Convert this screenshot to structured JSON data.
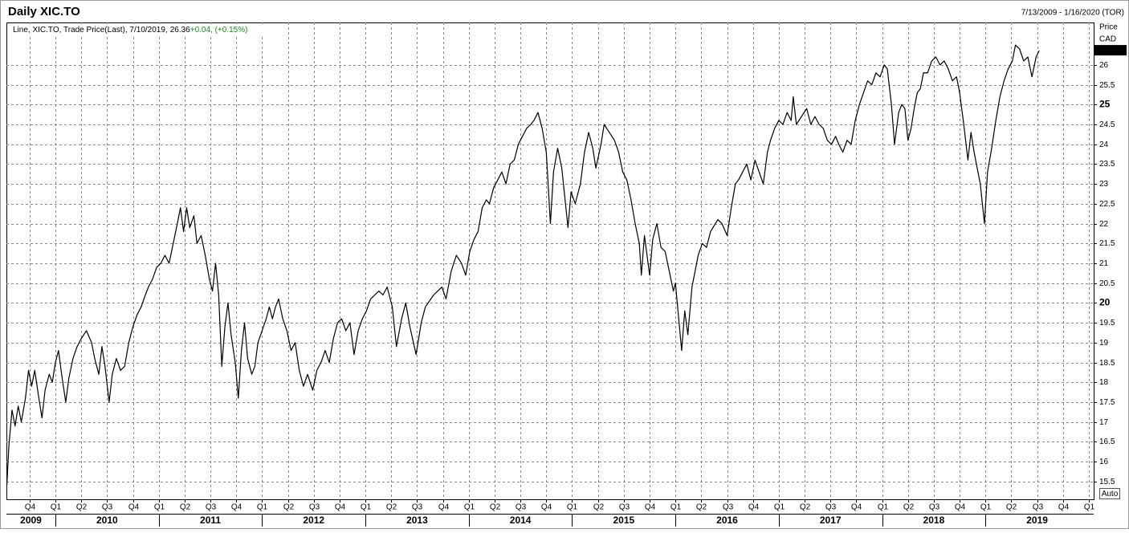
{
  "chart_data": {
    "type": "line",
    "title": "Daily XIC.TO",
    "date_range": "7/13/2009 - 1/16/2020 (TOR)",
    "legend_prefix": "Line, XIC.TO, Trade Price(Last), 7/10/2019,",
    "last_value": 26.36,
    "change": "+0.04, (+0.15%)",
    "y_axis_label": "Price",
    "y_axis_unit": "CAD",
    "auto_button": "Auto",
    "color": "#000000",
    "change_color": "#1a8a1a",
    "grid": true,
    "xlim": [
      2009.526,
      2020.047
    ],
    "ylim": [
      15.05,
      27.07
    ],
    "yticks": [
      15.5,
      16,
      16.5,
      17,
      17.5,
      18,
      18.5,
      19,
      19.5,
      20,
      20.5,
      21,
      21.5,
      22,
      22.5,
      23,
      23.5,
      24,
      24.5,
      25,
      25.5,
      26
    ],
    "xticks": [
      {
        "value": 2009.75,
        "label": "Q4"
      },
      {
        "value": 2010,
        "label": "Q1"
      },
      {
        "value": 2010.25,
        "label": "Q2"
      },
      {
        "value": 2010.5,
        "label": "Q3"
      },
      {
        "value": 2010.75,
        "label": "Q4"
      },
      {
        "value": 2011,
        "label": "Q1"
      },
      {
        "value": 2011.25,
        "label": "Q2"
      },
      {
        "value": 2011.5,
        "label": "Q3"
      },
      {
        "value": 2011.75,
        "label": "Q4"
      },
      {
        "value": 2012,
        "label": "Q1"
      },
      {
        "value": 2012.25,
        "label": "Q2"
      },
      {
        "value": 2012.5,
        "label": "Q3"
      },
      {
        "value": 2012.75,
        "label": "Q4"
      },
      {
        "value": 2013,
        "label": "Q1"
      },
      {
        "value": 2013.25,
        "label": "Q2"
      },
      {
        "value": 2013.5,
        "label": "Q3"
      },
      {
        "value": 2013.75,
        "label": "Q4"
      },
      {
        "value": 2014,
        "label": "Q1"
      },
      {
        "value": 2014.25,
        "label": "Q2"
      },
      {
        "value": 2014.5,
        "label": "Q3"
      },
      {
        "value": 2014.75,
        "label": "Q4"
      },
      {
        "value": 2015,
        "label": "Q1"
      },
      {
        "value": 2015.25,
        "label": "Q2"
      },
      {
        "value": 2015.5,
        "label": "Q3"
      },
      {
        "value": 2015.75,
        "label": "Q4"
      },
      {
        "value": 2016,
        "label": "Q1"
      },
      {
        "value": 2016.25,
        "label": "Q2"
      },
      {
        "value": 2016.5,
        "label": "Q3"
      },
      {
        "value": 2016.75,
        "label": "Q4"
      },
      {
        "value": 2017,
        "label": "Q1"
      },
      {
        "value": 2017.25,
        "label": "Q2"
      },
      {
        "value": 2017.5,
        "label": "Q3"
      },
      {
        "value": 2017.75,
        "label": "Q4"
      },
      {
        "value": 2018,
        "label": "Q1"
      },
      {
        "value": 2018.25,
        "label": "Q2"
      },
      {
        "value": 2018.5,
        "label": "Q3"
      },
      {
        "value": 2018.75,
        "label": "Q4"
      },
      {
        "value": 2019,
        "label": "Q1"
      },
      {
        "value": 2019.25,
        "label": "Q2"
      },
      {
        "value": 2019.5,
        "label": "Q3"
      },
      {
        "value": 2019.75,
        "label": "Q4"
      },
      {
        "value": 2020,
        "label": "Q1"
      }
    ],
    "years": [
      2009,
      2010,
      2011,
      2012,
      2013,
      2014,
      2015,
      2016,
      2017,
      2018,
      2019
    ],
    "x": [
      2009.53,
      2009.55,
      2009.58,
      2009.61,
      2009.64,
      2009.67,
      2009.71,
      2009.74,
      2009.77,
      2009.8,
      2009.84,
      2009.87,
      2009.9,
      2009.94,
      2009.97,
      2010.0,
      2010.03,
      2010.06,
      2010.1,
      2010.13,
      2010.17,
      2010.21,
      2010.25,
      2010.3,
      2010.35,
      2010.38,
      2010.42,
      2010.45,
      2010.48,
      2010.52,
      2010.55,
      2010.59,
      2010.63,
      2010.67,
      2010.71,
      2010.75,
      2010.79,
      2010.83,
      2010.87,
      2010.9,
      2010.94,
      2010.98,
      2011.02,
      2011.06,
      2011.1,
      2011.14,
      2011.18,
      2011.21,
      2011.24,
      2011.27,
      2011.3,
      2011.34,
      2011.37,
      2011.41,
      2011.45,
      2011.49,
      2011.52,
      2011.55,
      2011.58,
      2011.61,
      2011.64,
      2011.67,
      2011.7,
      2011.74,
      2011.77,
      2011.8,
      2011.83,
      2011.86,
      2011.9,
      2011.93,
      2011.96,
      2012.0,
      2012.04,
      2012.07,
      2012.1,
      2012.13,
      2012.16,
      2012.2,
      2012.24,
      2012.28,
      2012.32,
      2012.36,
      2012.4,
      2012.44,
      2012.49,
      2012.53,
      2012.57,
      2012.61,
      2012.65,
      2012.69,
      2012.73,
      2012.77,
      2012.81,
      2012.85,
      2012.89,
      2012.93,
      2012.97,
      2013.01,
      2013.05,
      2013.09,
      2013.13,
      2013.17,
      2013.21,
      2013.26,
      2013.3,
      2013.35,
      2013.39,
      2013.43,
      2013.49,
      2013.54,
      2013.58,
      2013.66,
      2013.74,
      2013.78,
      2013.83,
      2013.88,
      2013.93,
      2013.97,
      2014.01,
      2014.05,
      2014.09,
      2014.13,
      2014.17,
      2014.2,
      2014.24,
      2014.28,
      2014.32,
      2014.36,
      2014.4,
      2014.44,
      2014.48,
      2014.52,
      2014.56,
      2014.6,
      2014.63,
      2014.67,
      2014.71,
      2014.75,
      2014.79,
      2014.82,
      2014.86,
      2014.9,
      2014.96,
      2014.99,
      2015.03,
      2015.08,
      2015.12,
      2015.16,
      2015.2,
      2015.23,
      2015.28,
      2015.31,
      2015.36,
      2015.41,
      2015.45,
      2015.49,
      2015.53,
      2015.57,
      2015.61,
      2015.65,
      2015.67,
      2015.7,
      2015.75,
      2015.78,
      2015.82,
      2015.86,
      2015.9,
      2015.94,
      2015.98,
      2016.0,
      2016.06,
      2016.09,
      2016.12,
      2016.16,
      2016.22,
      2016.26,
      2016.3,
      2016.34,
      2016.41,
      2016.45,
      2016.5,
      2016.54,
      2016.58,
      2016.61,
      2016.65,
      2016.69,
      2016.73,
      2016.77,
      2016.81,
      2016.85,
      2016.89,
      2016.92,
      2016.96,
      2017.0,
      2017.04,
      2017.08,
      2017.12,
      2017.14,
      2017.17,
      2017.22,
      2017.27,
      2017.31,
      2017.35,
      2017.39,
      2017.43,
      2017.47,
      2017.51,
      2017.55,
      2017.58,
      2017.62,
      2017.66,
      2017.7,
      2017.74,
      2017.78,
      2017.82,
      2017.86,
      2017.9,
      2017.94,
      2017.98,
      2018.02,
      2018.05,
      2018.09,
      2018.12,
      2018.16,
      2018.19,
      2018.22,
      2018.25,
      2018.28,
      2018.31,
      2018.34,
      2018.37,
      2018.4,
      2018.44,
      2018.48,
      2018.52,
      2018.56,
      2018.6,
      2018.64,
      2018.68,
      2018.72,
      2018.75,
      2018.79,
      2018.83,
      2018.86,
      2018.89,
      2018.92,
      2018.95,
      2018.99,
      2019.02,
      2019.06,
      2019.1,
      2019.14,
      2019.18,
      2019.22,
      2019.26,
      2019.29,
      2019.33,
      2019.37,
      2019.41,
      2019.45,
      2019.49,
      2019.52
    ],
    "values": [
      15.4,
      16.4,
      17.3,
      16.9,
      17.4,
      17.0,
      17.6,
      18.3,
      17.9,
      18.3,
      17.6,
      17.1,
      17.8,
      18.2,
      18.0,
      18.5,
      18.8,
      18.2,
      17.5,
      18.1,
      18.6,
      18.9,
      19.1,
      19.3,
      19.0,
      18.6,
      18.2,
      18.9,
      18.4,
      17.5,
      18.2,
      18.6,
      18.3,
      18.4,
      19.0,
      19.4,
      19.7,
      19.9,
      20.2,
      20.4,
      20.6,
      20.9,
      21.0,
      21.2,
      21.0,
      21.5,
      22.0,
      22.4,
      21.8,
      22.4,
      21.9,
      22.2,
      21.5,
      21.7,
      21.2,
      20.6,
      20.3,
      21.0,
      20.2,
      18.4,
      19.4,
      20.0,
      19.2,
      18.5,
      17.6,
      18.8,
      19.5,
      18.6,
      18.2,
      18.4,
      19.0,
      19.3,
      19.6,
      19.9,
      19.6,
      19.9,
      20.1,
      19.6,
      19.3,
      18.8,
      19.0,
      18.3,
      17.9,
      18.2,
      17.8,
      18.3,
      18.5,
      18.8,
      18.5,
      19.1,
      19.5,
      19.6,
      19.3,
      19.5,
      18.7,
      19.3,
      19.6,
      19.8,
      20.1,
      20.2,
      20.3,
      20.2,
      20.4,
      19.9,
      18.9,
      19.6,
      20.0,
      19.4,
      18.7,
      19.5,
      19.9,
      20.2,
      20.4,
      20.1,
      20.8,
      21.2,
      21.0,
      20.7,
      21.3,
      21.6,
      21.8,
      22.4,
      22.6,
      22.5,
      22.9,
      23.1,
      23.3,
      23.0,
      23.5,
      23.6,
      24.0,
      24.2,
      24.4,
      24.5,
      24.6,
      24.8,
      24.4,
      23.8,
      22.0,
      23.3,
      23.9,
      23.4,
      21.9,
      22.8,
      22.5,
      23.0,
      23.8,
      24.3,
      23.9,
      23.4,
      24.0,
      24.5,
      24.3,
      24.1,
      23.8,
      23.3,
      23.1,
      22.6,
      22.0,
      21.5,
      20.7,
      21.7,
      20.7,
      21.6,
      22.0,
      21.4,
      21.3,
      20.8,
      20.3,
      20.5,
      18.8,
      19.8,
      19.2,
      20.4,
      21.2,
      21.5,
      21.4,
      21.8,
      22.1,
      22.0,
      21.7,
      22.4,
      23.0,
      23.1,
      23.3,
      23.5,
      23.1,
      23.6,
      23.3,
      23.0,
      23.8,
      24.1,
      24.4,
      24.6,
      24.5,
      24.8,
      24.6,
      25.2,
      24.5,
      24.7,
      24.9,
      24.5,
      24.7,
      24.5,
      24.4,
      24.1,
      24.0,
      24.2,
      24.0,
      23.8,
      24.1,
      24.0,
      24.6,
      25.0,
      25.3,
      25.6,
      25.5,
      25.8,
      25.7,
      26.0,
      25.9,
      25.0,
      24.0,
      24.8,
      25.0,
      24.9,
      24.1,
      24.4,
      24.9,
      25.3,
      25.4,
      25.8,
      25.8,
      26.1,
      26.2,
      26.0,
      26.1,
      25.9,
      25.6,
      25.7,
      25.3,
      24.5,
      23.6,
      24.3,
      23.8,
      23.4,
      23.0,
      22.0,
      23.3,
      23.9,
      24.6,
      25.2,
      25.6,
      25.9,
      26.1,
      26.5,
      26.4,
      26.1,
      26.2,
      25.7,
      26.2,
      26.36
    ]
  }
}
